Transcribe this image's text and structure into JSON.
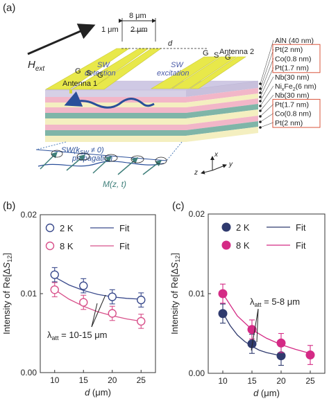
{
  "panel_a": {
    "label": "(a)",
    "field_label": "H",
    "field_sub": "ext",
    "dim_8um": "8 μm",
    "dim_1um": "1 μm",
    "dim_2um": "2 μm",
    "dim_d": "d",
    "sw_detection_1": "SW",
    "sw_detection_2": "detection",
    "sw_excitation_1": "SW",
    "sw_excitation_2": "excitation",
    "antenna1": "Antenna 1",
    "antenna2": "Antenna 2",
    "gsg1": [
      "G",
      "S",
      "G"
    ],
    "gsg2": [
      "G",
      "S",
      "G"
    ],
    "propagation_1": "SW(k",
    "propagation_1_sub": "SW",
    "propagation_1_end": " ≠ 0)",
    "propagation_2": "propagation",
    "magnetization": "M(z, t)",
    "axes": {
      "x": "x",
      "y": "y",
      "z": "z"
    },
    "layers": [
      {
        "text": "AlN (40 nm)",
        "boxed": false
      },
      {
        "text": "Pt(2 nm)",
        "boxed": true
      },
      {
        "text": "Co(0.8 nm)",
        "boxed": true
      },
      {
        "text": "Pt(1.7 nm)",
        "boxed": true
      },
      {
        "text": "Nb(30 nm)",
        "boxed": false
      },
      {
        "text": "NixFe2(6 nm)",
        "boxed": false
      },
      {
        "text": "Nb(30 nm)",
        "boxed": false
      },
      {
        "text": "Pt(1.7 nm)",
        "boxed": true
      },
      {
        "text": "Co(0.8 nm)",
        "boxed": true
      },
      {
        "text": "Pt(2 nm)",
        "boxed": true
      }
    ],
    "colors": {
      "antenna": "#e8e84a",
      "top": "#d6d0e6",
      "pink": "#f2b6c8",
      "teal": "#7fb5a8",
      "cream": "#f4efc0",
      "sw": "#2a4f9a",
      "box": "#d9533a"
    }
  },
  "chart_data": [
    {
      "type": "scatter",
      "panel_label": "(b)",
      "ylabel_pre": "Intensity of Re[Δ",
      "ylabel_var": "S",
      "ylabel_sub": "12",
      "ylabel_post": "]",
      "xlabel_var": "d",
      "xlabel_unit": " (μm)",
      "x_ticks": [
        "10",
        "15",
        "20",
        "25"
      ],
      "y_ticks": [
        "0.00",
        "0.01",
        "0.02"
      ],
      "xlim": [
        7.5,
        27.5
      ],
      "ylim": [
        0,
        0.02
      ],
      "annotation": "λ",
      "annotation_sub": "att",
      "annotation_rest": " = 10-15 μm",
      "series": [
        {
          "name": "2 K",
          "fit_name": "Fit",
          "style": "open",
          "color": "#3a4a8c",
          "x": [
            10,
            15,
            20,
            25
          ],
          "y": [
            0.0124,
            0.011,
            0.0096,
            0.0092
          ],
          "err": [
            0.0009,
            0.0009,
            0.0009,
            0.0009
          ],
          "fit_x": [
            10,
            12.5,
            15,
            17.5,
            20,
            22.5,
            25
          ],
          "fit_y": [
            0.0121,
            0.0111,
            0.0104,
            0.0099,
            0.0096,
            0.0094,
            0.0093
          ]
        },
        {
          "name": "8 K",
          "fit_name": "Fit",
          "style": "open",
          "color": "#d8508a",
          "x": [
            10,
            15,
            20,
            25
          ],
          "y": [
            0.0105,
            0.0089,
            0.0075,
            0.0065
          ],
          "err": [
            0.0009,
            0.0009,
            0.0009,
            0.0009
          ],
          "fit_x": [
            10,
            12.5,
            15,
            17.5,
            20,
            22.5,
            25
          ],
          "fit_y": [
            0.0105,
            0.0093,
            0.0084,
            0.0077,
            0.0072,
            0.0068,
            0.0065
          ]
        }
      ]
    },
    {
      "type": "scatter",
      "panel_label": "(c)",
      "ylabel_pre": "Intensity of Re[Δ",
      "ylabel_var": "S",
      "ylabel_sub": "12",
      "ylabel_post": "]",
      "xlabel_var": "d",
      "xlabel_unit": " (μm)",
      "x_ticks": [
        "10",
        "15",
        "20",
        "25"
      ],
      "y_ticks": [
        "0.00",
        "0.01",
        "0.02"
      ],
      "xlim": [
        7.5,
        27.5
      ],
      "ylim": [
        0,
        0.02
      ],
      "annotation": "λ",
      "annotation_sub": "att",
      "annotation_rest": " = 5-8 μm",
      "series": [
        {
          "name": "2 K",
          "fit_name": "Fit",
          "style": "filled",
          "color": "#2f3a6e",
          "x": [
            10,
            15,
            20
          ],
          "y": [
            0.0075,
            0.0037,
            0.0022
          ],
          "err": [
            0.0012,
            0.0012,
            0.0012
          ],
          "fit_x": [
            10,
            11.25,
            12.5,
            13.75,
            15,
            16.25,
            17.5,
            18.75,
            20
          ],
          "fit_y": [
            0.0076,
            0.006,
            0.0048,
            0.004,
            0.0034,
            0.0029,
            0.0026,
            0.0024,
            0.0022
          ]
        },
        {
          "name": "8 K",
          "fit_name": "Fit",
          "style": "filled",
          "color": "#d42a85",
          "x": [
            10,
            15,
            20,
            25
          ],
          "y": [
            0.01,
            0.0055,
            0.0038,
            0.0023
          ],
          "err": [
            0.0012,
            0.0012,
            0.0012,
            0.0012
          ],
          "fit_x": [
            10,
            12.5,
            15,
            17.5,
            20,
            22.5,
            25
          ],
          "fit_y": [
            0.01,
            0.0072,
            0.0055,
            0.0044,
            0.0036,
            0.003,
            0.0025
          ]
        }
      ]
    }
  ]
}
